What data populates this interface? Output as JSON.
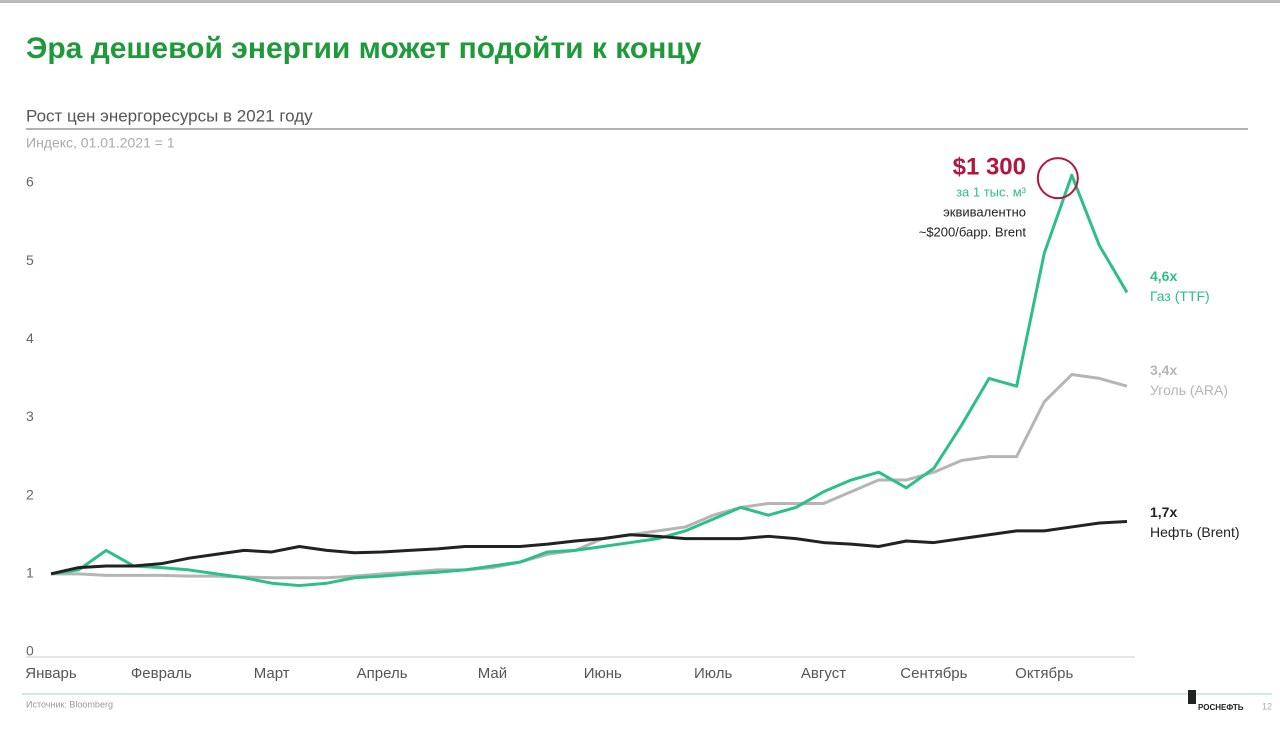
{
  "title": "Эра дешевой энергии может подойти к концу",
  "source": "Источник: Bloomberg",
  "page_number": "12",
  "logo": "РОСНЕФТЬ",
  "chart_data": {
    "type": "line",
    "subtitle": "Рост цен энергоресурсы в 2021 году",
    "y_label": "Индекс, 01.01.2021 = 1",
    "categories": [
      "Январь",
      null,
      null,
      null,
      "Февраль",
      null,
      null,
      null,
      "Март",
      null,
      null,
      null,
      "Апрель",
      null,
      null,
      null,
      "Май",
      null,
      null,
      null,
      "Июнь",
      null,
      null,
      null,
      "Июль",
      null,
      null,
      null,
      "Август",
      null,
      null,
      null,
      "Сентябрь",
      null,
      null,
      null,
      "Октябрь",
      null,
      null,
      null
    ],
    "series": [
      {
        "name": "Газ (TTF)",
        "end_label": "4,6x",
        "color": "#2dbf8a",
        "values": [
          1,
          1.05,
          1.3,
          1.1,
          1.08,
          1.05,
          1,
          0.95,
          0.88,
          0.85,
          0.88,
          0.95,
          0.97,
          1,
          1.02,
          1.05,
          1.1,
          1.15,
          1.28,
          1.3,
          1.35,
          1.4,
          1.45,
          1.55,
          1.7,
          1.85,
          1.75,
          1.85,
          2.05,
          2.2,
          2.3,
          2.1,
          2.35,
          2.9,
          3.5,
          3.4,
          5.1,
          6.1,
          5.2,
          4.6
        ]
      },
      {
        "name": "Уголь (ARA)",
        "end_label": "3,4x",
        "color": "#b5b5b5",
        "values": [
          1,
          1,
          0.98,
          0.98,
          0.98,
          0.97,
          0.97,
          0.96,
          0.95,
          0.95,
          0.95,
          0.97,
          1,
          1.02,
          1.05,
          1.05,
          1.08,
          1.15,
          1.25,
          1.3,
          1.45,
          1.5,
          1.55,
          1.6,
          1.75,
          1.85,
          1.9,
          1.9,
          1.9,
          2.05,
          2.2,
          2.2,
          2.3,
          2.45,
          2.5,
          2.5,
          3.2,
          3.55,
          3.5,
          3.4
        ]
      },
      {
        "name": "Нефть (Brent)",
        "end_label": "1,7x",
        "color": "#222222",
        "values": [
          1,
          1.08,
          1.1,
          1.1,
          1.13,
          1.2,
          1.25,
          1.3,
          1.28,
          1.35,
          1.3,
          1.27,
          1.28,
          1.3,
          1.32,
          1.35,
          1.35,
          1.35,
          1.38,
          1.42,
          1.45,
          1.5,
          1.48,
          1.45,
          1.45,
          1.45,
          1.48,
          1.45,
          1.4,
          1.38,
          1.35,
          1.42,
          1.4,
          1.45,
          1.5,
          1.55,
          1.55,
          1.6,
          1.65,
          1.67
        ]
      }
    ],
    "annotation": {
      "value": "$1 300",
      "unit": "за 1 тыс. м³",
      "line1": "эквивалентно",
      "line2": "~$200/барр. Brent"
    },
    "ylim": [
      0,
      6
    ],
    "yticks": [
      0,
      1,
      2,
      3,
      4,
      5,
      6
    ]
  }
}
